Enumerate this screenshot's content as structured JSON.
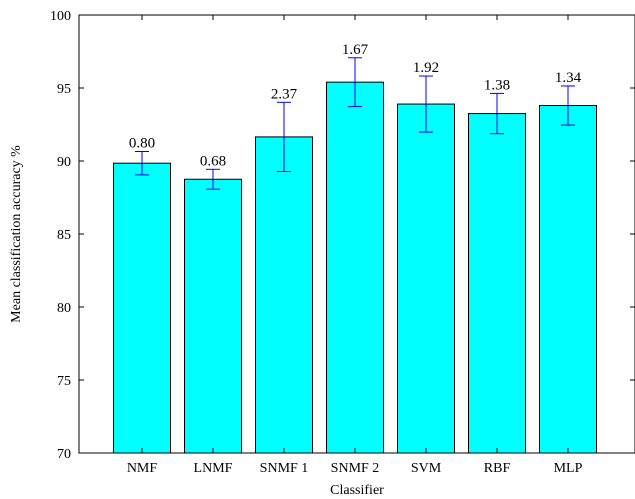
{
  "chart_data": {
    "type": "bar",
    "xlabel": "Classifier",
    "ylabel": "Mean classification accuracy %",
    "ylim": [
      70,
      100
    ],
    "yticks": [
      70,
      75,
      80,
      85,
      90,
      95,
      100
    ],
    "grid": false,
    "categories": [
      "NMF",
      "LNMF",
      "SNMF 1",
      "SNMF 2",
      "SVM",
      "RBF",
      "MLP"
    ],
    "values": [
      89.85,
      88.75,
      91.65,
      95.4,
      93.9,
      93.25,
      93.8
    ],
    "error": [
      0.8,
      0.68,
      2.37,
      1.67,
      1.92,
      1.38,
      1.34
    ],
    "error_labels": [
      "0.80",
      "0.68",
      "2.37",
      "1.67",
      "1.92",
      "1.38",
      "1.34"
    ],
    "colors": {
      "bar": "#00ffff",
      "bar_edge": "#000000",
      "error_bar": "#0000ff"
    }
  }
}
